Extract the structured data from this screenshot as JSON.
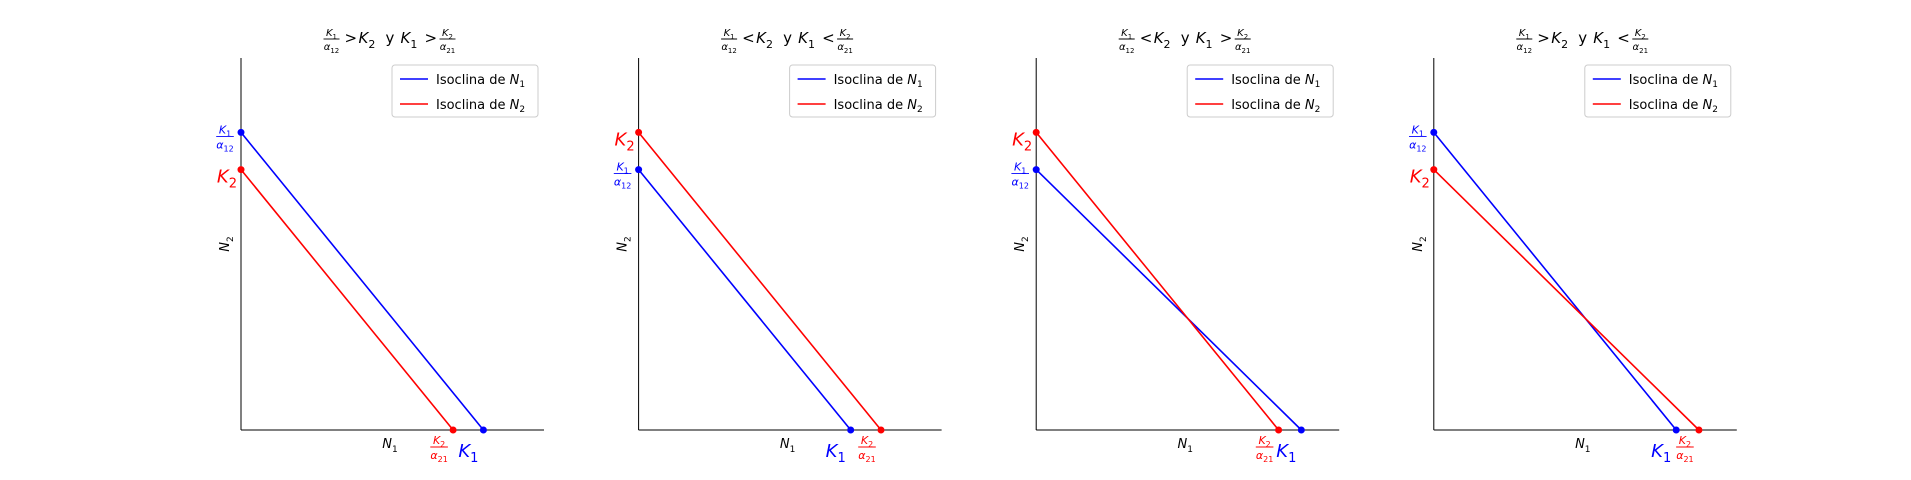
{
  "chart_data": [
    {
      "type": "line",
      "title": {
        "a": "K",
        "a_sub": "1",
        "b": "α",
        "b_sub": "12",
        "op1": ">",
        "c": "K",
        "c_sub": "2",
        "conj": "y",
        "d": "K",
        "d_sub": "1",
        "op2": ">",
        "e": "K",
        "e_sub": "2",
        "f": "α",
        "f_sub": "21"
      },
      "xlabel": {
        "base": "N",
        "sub": "1"
      },
      "ylabel": {
        "base": "N",
        "sub": "2"
      },
      "xlim": [
        0,
        1
      ],
      "ylim": [
        0,
        1
      ],
      "legend_position": "upper right",
      "series": [
        {
          "name": {
            "prefix": "Isoclina de ",
            "base": "N",
            "sub": "1"
          },
          "color": "#0000ff",
          "points": [
            [
              0,
              0.8
            ],
            [
              0.8,
              0
            ]
          ]
        },
        {
          "name": {
            "prefix": "Isoclina de ",
            "base": "N",
            "sub": "2"
          },
          "color": "#ff0000",
          "points": [
            [
              0,
              0.7
            ],
            [
              0.7,
              0
            ]
          ]
        }
      ],
      "y_annotations": [
        {
          "kind": "frac",
          "num": "K",
          "num_sub": "1",
          "den": "α",
          "den_sub": "12",
          "y": 0.8,
          "color": "#0000ff"
        },
        {
          "kind": "sym",
          "base": "K",
          "sub": "2",
          "y": 0.7,
          "color": "#ff0000"
        }
      ],
      "x_annotations": [
        {
          "kind": "frac",
          "num": "K",
          "num_sub": "2",
          "den": "α",
          "den_sub": "21",
          "x": 0.7,
          "color": "#ff0000"
        },
        {
          "kind": "sym",
          "base": "K",
          "sub": "1",
          "x": 0.8,
          "color": "#0000ff"
        }
      ]
    },
    {
      "type": "line",
      "title": {
        "a": "K",
        "a_sub": "1",
        "b": "α",
        "b_sub": "12",
        "op1": "<",
        "c": "K",
        "c_sub": "2",
        "conj": "y",
        "d": "K",
        "d_sub": "1",
        "op2": "<",
        "e": "K",
        "e_sub": "2",
        "f": "α",
        "f_sub": "21"
      },
      "xlabel": {
        "base": "N",
        "sub": "1"
      },
      "ylabel": {
        "base": "N",
        "sub": "2"
      },
      "xlim": [
        0,
        1
      ],
      "ylim": [
        0,
        1
      ],
      "legend_position": "upper right",
      "series": [
        {
          "name": {
            "prefix": "Isoclina de ",
            "base": "N",
            "sub": "1"
          },
          "color": "#0000ff",
          "points": [
            [
              0,
              0.7
            ],
            [
              0.7,
              0
            ]
          ]
        },
        {
          "name": {
            "prefix": "Isoclina de ",
            "base": "N",
            "sub": "2"
          },
          "color": "#ff0000",
          "points": [
            [
              0,
              0.8
            ],
            [
              0.8,
              0
            ]
          ]
        }
      ],
      "y_annotations": [
        {
          "kind": "sym",
          "base": "K",
          "sub": "2",
          "y": 0.8,
          "color": "#ff0000"
        },
        {
          "kind": "frac",
          "num": "K",
          "num_sub": "1",
          "den": "α",
          "den_sub": "12",
          "y": 0.7,
          "color": "#0000ff"
        }
      ],
      "x_annotations": [
        {
          "kind": "sym",
          "base": "K",
          "sub": "1",
          "x": 0.7,
          "color": "#0000ff"
        },
        {
          "kind": "frac",
          "num": "K",
          "num_sub": "2",
          "den": "α",
          "den_sub": "21",
          "x": 0.8,
          "color": "#ff0000"
        }
      ]
    },
    {
      "type": "line",
      "title": {
        "a": "K",
        "a_sub": "1",
        "b": "α",
        "b_sub": "12",
        "op1": "<",
        "c": "K",
        "c_sub": "2",
        "conj": "y",
        "d": "K",
        "d_sub": "1",
        "op2": ">",
        "e": "K",
        "e_sub": "2",
        "f": "α",
        "f_sub": "21"
      },
      "xlabel": {
        "base": "N",
        "sub": "1"
      },
      "ylabel": {
        "base": "N",
        "sub": "2"
      },
      "xlim": [
        0,
        1
      ],
      "ylim": [
        0,
        1
      ],
      "legend_position": "upper right",
      "series": [
        {
          "name": {
            "prefix": "Isoclina de ",
            "base": "N",
            "sub": "1"
          },
          "color": "#0000ff",
          "points": [
            [
              0,
              0.7
            ],
            [
              0.875,
              0
            ]
          ]
        },
        {
          "name": {
            "prefix": "Isoclina de ",
            "base": "N",
            "sub": "2"
          },
          "color": "#ff0000",
          "points": [
            [
              0,
              0.8
            ],
            [
              0.8,
              0
            ]
          ]
        }
      ],
      "y_annotations": [
        {
          "kind": "sym",
          "base": "K",
          "sub": "2",
          "y": 0.8,
          "color": "#ff0000"
        },
        {
          "kind": "frac",
          "num": "K",
          "num_sub": "1",
          "den": "α",
          "den_sub": "12",
          "y": 0.7,
          "color": "#0000ff"
        }
      ],
      "x_annotations": [
        {
          "kind": "frac",
          "num": "K",
          "num_sub": "2",
          "den": "α",
          "den_sub": "21",
          "x": 0.8,
          "color": "#ff0000"
        },
        {
          "kind": "sym",
          "base": "K",
          "sub": "1",
          "x": 0.875,
          "color": "#0000ff"
        }
      ]
    },
    {
      "type": "line",
      "title": {
        "a": "K",
        "a_sub": "1",
        "b": "α",
        "b_sub": "12",
        "op1": ">",
        "c": "K",
        "c_sub": "2",
        "conj": "y",
        "d": "K",
        "d_sub": "1",
        "op2": "<",
        "e": "K",
        "e_sub": "2",
        "f": "α",
        "f_sub": "21"
      },
      "xlabel": {
        "base": "N",
        "sub": "1"
      },
      "ylabel": {
        "base": "N",
        "sub": "2"
      },
      "xlim": [
        0,
        1
      ],
      "ylim": [
        0,
        1
      ],
      "legend_position": "upper right",
      "series": [
        {
          "name": {
            "prefix": "Isoclina de ",
            "base": "N",
            "sub": "1"
          },
          "color": "#0000ff",
          "points": [
            [
              0,
              0.8
            ],
            [
              0.8,
              0
            ]
          ]
        },
        {
          "name": {
            "prefix": "Isoclina de ",
            "base": "N",
            "sub": "2"
          },
          "color": "#ff0000",
          "points": [
            [
              0,
              0.7
            ],
            [
              0.875,
              0
            ]
          ]
        }
      ],
      "y_annotations": [
        {
          "kind": "frac",
          "num": "K",
          "num_sub": "1",
          "den": "α",
          "den_sub": "12",
          "y": 0.8,
          "color": "#0000ff"
        },
        {
          "kind": "sym",
          "base": "K",
          "sub": "2",
          "y": 0.7,
          "color": "#ff0000"
        }
      ],
      "x_annotations": [
        {
          "kind": "sym",
          "base": "K",
          "sub": "1",
          "x": 0.8,
          "color": "#0000ff"
        },
        {
          "kind": "frac",
          "num": "K",
          "num_sub": "2",
          "den": "α",
          "den_sub": "21",
          "x": 0.875,
          "color": "#ff0000"
        }
      ]
    }
  ]
}
